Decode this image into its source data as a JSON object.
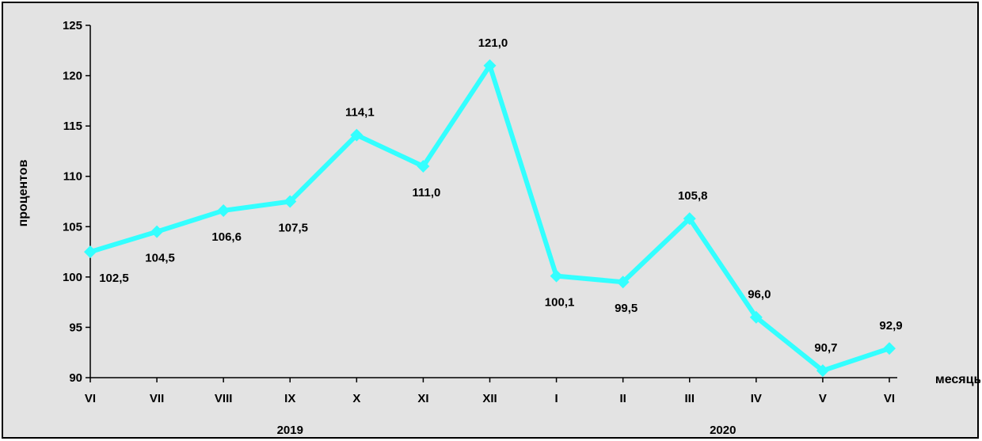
{
  "chart_data": {
    "type": "line",
    "ylabel": "процентов",
    "xlabel": "месяцы",
    "ylim": [
      90,
      125
    ],
    "yticks": [
      90,
      95,
      100,
      105,
      110,
      115,
      120,
      125
    ],
    "grid": false,
    "categories": [
      "VI",
      "VII",
      "VIII",
      "IX",
      "X",
      "XI",
      "XII",
      "I",
      "II",
      "III",
      "IV",
      "V",
      "VI"
    ],
    "year_groups": [
      {
        "label": "2019",
        "from": 0,
        "to": 6
      },
      {
        "label": "2020",
        "from": 7,
        "to": 12
      }
    ],
    "series": [
      {
        "values": [
          102.5,
          104.5,
          106.6,
          107.5,
          114.1,
          111.0,
          121.0,
          100.1,
          99.5,
          105.8,
          96.0,
          90.7,
          92.9
        ],
        "labels": [
          "102,5",
          "104,5",
          "106,6",
          "107,5",
          "114,1",
          "111,0",
          "121,0",
          "100,1",
          "99,5",
          "105,8",
          "96,0",
          "90,7",
          "92,9"
        ],
        "label_positions": [
          "below",
          "below",
          "below",
          "below",
          "above",
          "below",
          "above",
          "below",
          "below",
          "above",
          "above",
          "above",
          "above"
        ],
        "color": "#33FFFF"
      }
    ],
    "plot_background": "#E3E3E3"
  }
}
